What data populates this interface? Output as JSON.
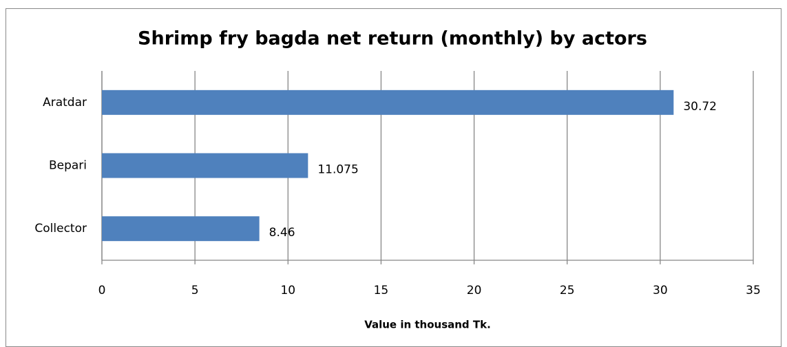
{
  "chart_data": {
    "type": "hbar",
    "title": "Shrimp fry bagda net return (monthly) by actors",
    "x_label": "Value in thousand Tk.",
    "categories": [
      "Aratdar",
      "Bepari",
      "Collector"
    ],
    "values": [
      30.72,
      11.075,
      8.46
    ],
    "color": "#4f81bd",
    "xlim": [
      0,
      35
    ],
    "xticks": [
      0,
      5,
      10,
      15,
      20,
      25,
      30,
      35
    ],
    "grid": true
  }
}
